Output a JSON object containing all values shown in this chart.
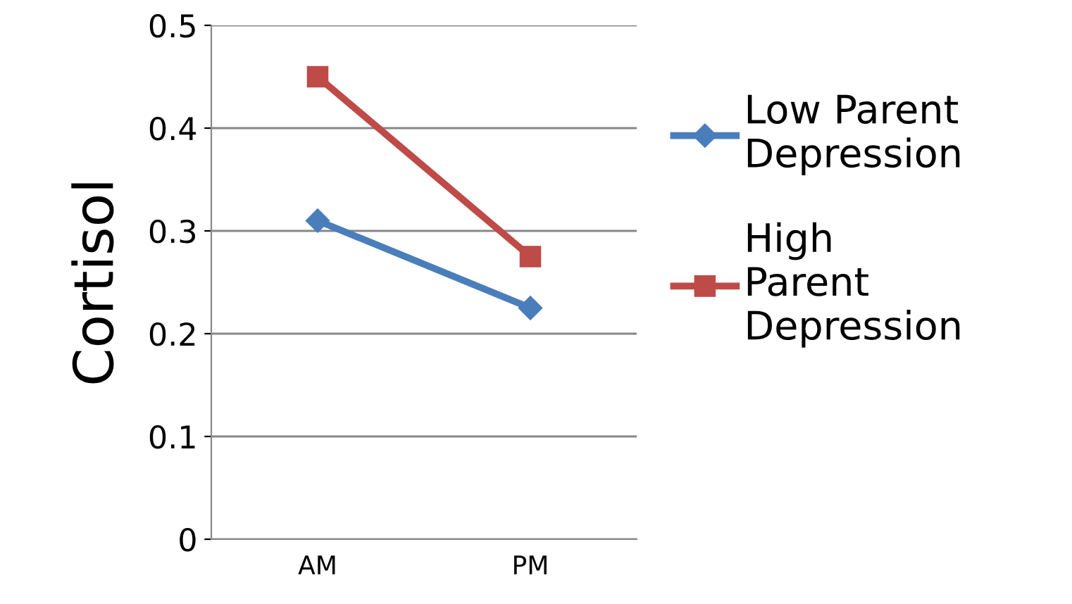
{
  "chart_data": {
    "type": "line",
    "ylabel": "Cortisol",
    "categories": [
      "AM",
      "PM"
    ],
    "series": [
      {
        "name": "Low Parent Depression",
        "color": "#4a7ebb",
        "values": [
          0.31,
          0.225
        ],
        "marker": "diamond"
      },
      {
        "name": "High Parent Depression",
        "color": "#be4b48",
        "values": [
          0.45,
          0.275
        ],
        "marker": "square"
      }
    ],
    "ylim": [
      0,
      0.5
    ],
    "yticks": [
      0,
      0.1,
      0.2,
      0.3,
      0.4,
      0.5
    ],
    "grid": "y",
    "legend": "right"
  }
}
